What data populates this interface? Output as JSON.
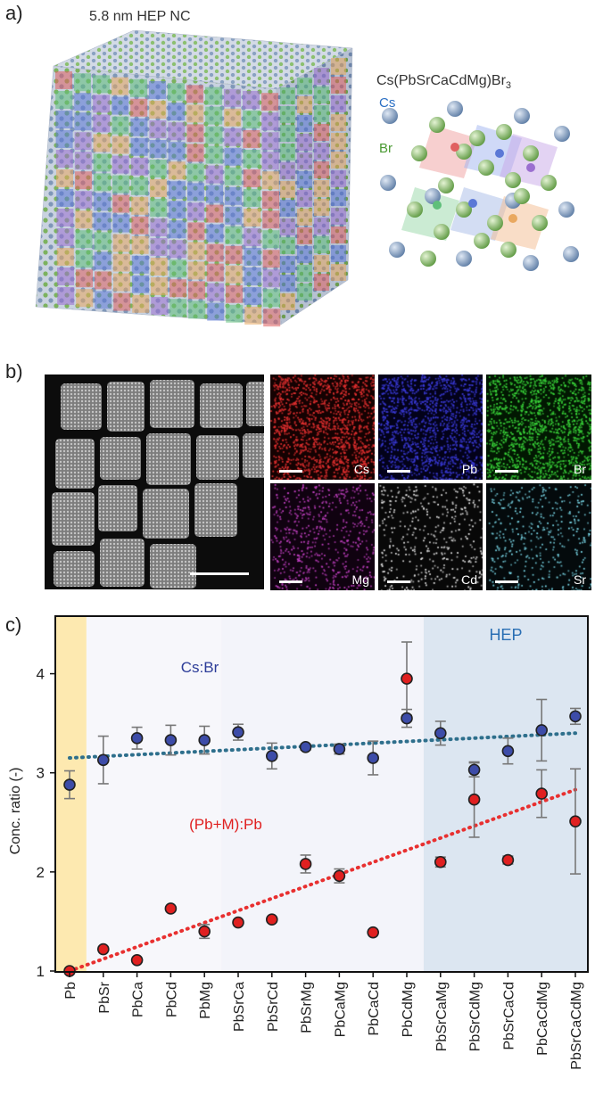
{
  "panel_a": {
    "label": "a)",
    "cube_title": "5.8 nm HEP NC",
    "formula_main": "Cs(PbSrCaCdMg)Br",
    "formula_sub": "3",
    "atom_labels": [
      "Cs",
      "Br"
    ],
    "colors": {
      "cs": "#7f97b8",
      "br": "#7cb25e",
      "pb": "#e06060",
      "sr": "#5b78d6",
      "ca": "#e9a860",
      "cd": "#9b6fd0",
      "mg": "#5fbf7a"
    }
  },
  "panel_b": {
    "label": "b)",
    "maps": [
      {
        "element": "Cs",
        "color": "#e53030"
      },
      {
        "element": "Pb",
        "color": "#3a3ad8"
      },
      {
        "element": "Br",
        "color": "#3ad63a"
      },
      {
        "element": "Mg",
        "color": "#c040c0"
      },
      {
        "element": "Cd",
        "color": "#e8e8e8"
      },
      {
        "element": "Sr",
        "color": "#7ad8e8"
      }
    ]
  },
  "panel_c": {
    "label": "c)",
    "hep_label": "HEP",
    "csbr_label": "Cs:Br",
    "pbm_label": "(Pb+M):Pb",
    "colors": {
      "pb_band": "#fde9b0",
      "light_band": "#f3f4fa",
      "hep_band": "#dce6f1",
      "csbr": "#3d4ca8",
      "pbm": "#e02020",
      "csbr_fit": "#2e6f8c",
      "pbm_fit": "#e83030"
    }
  },
  "chart_data": {
    "type": "scatter",
    "categories": [
      "Pb",
      "PbSr",
      "PbCa",
      "PbCd",
      "PbMg",
      "PbSrCa",
      "PbSrCd",
      "PbSrMg",
      "PbCaMg",
      "PbCaCd",
      "PbCdMg",
      "PbSrCaMg",
      "PbSrCdMg",
      "PbSrCaCd",
      "PbCaCdMg",
      "PbSrCaCdMg"
    ],
    "ylabel": "Conc. ratio (-)",
    "ylim": [
      1,
      4.5
    ],
    "yticks": [
      "1",
      "2",
      "3",
      "4"
    ],
    "series": [
      {
        "name": "Cs:Br",
        "values": [
          2.88,
          3.13,
          3.35,
          3.33,
          3.33,
          3.41,
          3.17,
          3.26,
          3.24,
          3.15,
          3.55,
          3.4,
          3.03,
          3.22,
          3.43,
          3.57
        ],
        "errors": [
          0.14,
          0.24,
          0.11,
          0.15,
          0.14,
          0.08,
          0.13,
          0.03,
          0.05,
          0.17,
          0.09,
          0.12,
          0.07,
          0.13,
          0.31,
          0.08
        ]
      },
      {
        "name": "(Pb+M):Pb",
        "values": [
          1.0,
          1.22,
          1.11,
          1.63,
          1.4,
          1.49,
          1.52,
          2.08,
          1.96,
          1.39,
          3.95,
          2.1,
          2.73,
          2.12,
          2.79,
          2.51
        ],
        "errors": [
          0.0,
          0.0,
          0.0,
          0.0,
          0.07,
          0.0,
          0.0,
          0.09,
          0.07,
          0.0,
          0.37,
          0.05,
          0.38,
          0.04,
          0.24,
          0.53
        ]
      }
    ],
    "fits": [
      {
        "series": "Cs:Br",
        "start": 3.15,
        "end": 3.4
      },
      {
        "series": "(Pb+M):Pb",
        "start": 1.0,
        "end": 2.83
      }
    ]
  }
}
